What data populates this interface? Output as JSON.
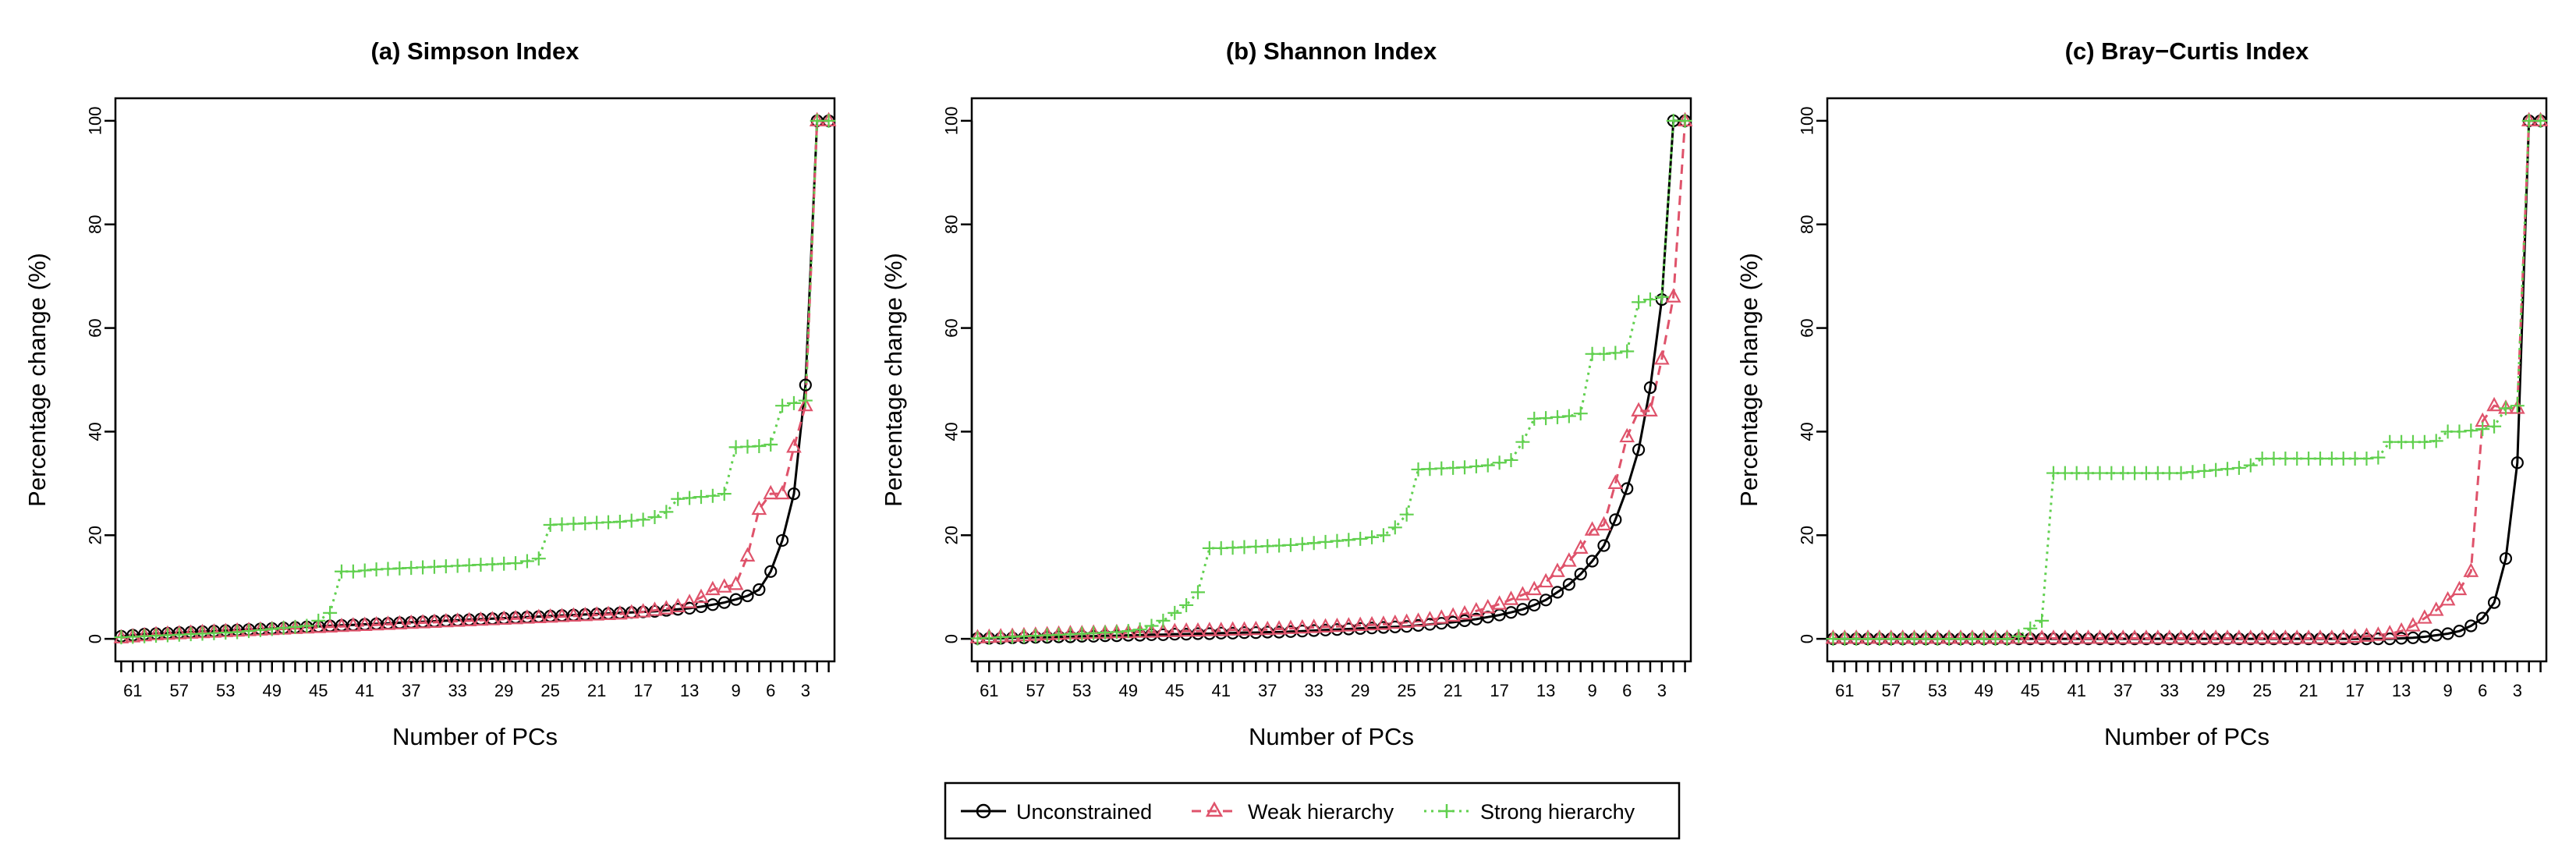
{
  "colors": {
    "unconstrained": "#000000",
    "weak": "#DF536B",
    "strong": "#61D04F"
  },
  "legend": {
    "items": [
      {
        "key": "unconstrained",
        "label": "Unconstrained"
      },
      {
        "key": "weak",
        "label": "Weak hierarchy"
      },
      {
        "key": "strong",
        "label": "Strong hierarchy"
      }
    ]
  },
  "chart_data": [
    {
      "type": "line",
      "title": "(a) Simpson Index",
      "xlabel": "Number of PCs",
      "ylabel": "Percentage change (%)",
      "x_reversed": true,
      "x": [
        62,
        61,
        60,
        59,
        58,
        57,
        56,
        55,
        54,
        53,
        52,
        51,
        50,
        49,
        48,
        47,
        46,
        45,
        44,
        43,
        42,
        41,
        40,
        39,
        38,
        37,
        36,
        35,
        34,
        33,
        32,
        31,
        30,
        29,
        28,
        27,
        26,
        25,
        24,
        23,
        22,
        21,
        20,
        19,
        18,
        17,
        16,
        15,
        14,
        13,
        12,
        11,
        10,
        9,
        8,
        7,
        6,
        5,
        4,
        3,
        2,
        1
      ],
      "xticks": [
        61,
        57,
        53,
        49,
        45,
        41,
        37,
        33,
        29,
        25,
        21,
        17,
        13,
        9,
        6,
        3
      ],
      "xlim": [
        62.5,
        0.5
      ],
      "ylim": [
        0,
        100
      ],
      "yticks": [
        0,
        20,
        40,
        60,
        80,
        100
      ],
      "series": [
        {
          "name": "Unconstrained",
          "key": "unconstrained",
          "values": [
            0.5,
            0.7,
            0.9,
            1.0,
            1.1,
            1.2,
            1.3,
            1.4,
            1.5,
            1.6,
            1.7,
            1.8,
            1.9,
            2.0,
            2.1,
            2.2,
            2.3,
            2.4,
            2.5,
            2.6,
            2.7,
            2.8,
            2.9,
            3.0,
            3.1,
            3.2,
            3.3,
            3.4,
            3.5,
            3.6,
            3.7,
            3.8,
            3.9,
            4.0,
            4.1,
            4.2,
            4.3,
            4.4,
            4.5,
            4.6,
            4.7,
            4.8,
            4.9,
            5.0,
            5.1,
            5.2,
            5.3,
            5.5,
            5.7,
            5.9,
            6.2,
            6.6,
            7.0,
            7.6,
            8.3,
            9.5,
            13.0,
            19.0,
            28.0,
            49.0,
            100.0,
            100.0
          ]
        },
        {
          "name": "Weak hierarchy",
          "key": "weak",
          "values": [
            0.2,
            0.4,
            0.6,
            0.8,
            0.9,
            1.0,
            1.1,
            1.2,
            1.3,
            1.4,
            1.5,
            1.6,
            1.7,
            1.8,
            1.9,
            2.0,
            2.1,
            2.2,
            2.3,
            2.4,
            2.5,
            2.6,
            2.7,
            2.8,
            2.9,
            3.0,
            3.1,
            3.2,
            3.3,
            3.4,
            3.5,
            3.6,
            3.7,
            3.8,
            3.9,
            4.0,
            4.1,
            4.2,
            4.3,
            4.4,
            4.5,
            4.6,
            4.7,
            4.8,
            5.0,
            5.2,
            5.5,
            5.8,
            6.2,
            7.0,
            8.0,
            9.5,
            10.0,
            10.5,
            16.0,
            25.0,
            28.0,
            28.0,
            37.0,
            45.0,
            100.0,
            100.0
          ]
        },
        {
          "name": "Strong hierarchy",
          "key": "strong",
          "values": [
            0.3,
            0.4,
            0.5,
            0.6,
            0.7,
            0.8,
            0.9,
            1.0,
            1.1,
            1.2,
            1.3,
            1.5,
            1.7,
            1.9,
            2.1,
            2.3,
            2.5,
            3.5,
            5.0,
            13.0,
            13.0,
            13.2,
            13.4,
            13.5,
            13.6,
            13.7,
            13.8,
            13.9,
            14.0,
            14.1,
            14.2,
            14.3,
            14.4,
            14.5,
            14.6,
            15.0,
            15.5,
            22.0,
            22.1,
            22.2,
            22.3,
            22.4,
            22.5,
            22.6,
            22.8,
            23.0,
            23.5,
            24.5,
            27.0,
            27.2,
            27.4,
            27.6,
            28.0,
            37.0,
            37.1,
            37.2,
            37.5,
            45.0,
            45.5,
            46.0,
            100.0,
            100.0
          ]
        }
      ]
    },
    {
      "type": "line",
      "title": "(b) Shannon Index",
      "xlabel": "Number of PCs",
      "ylabel": "Percentage change (%)",
      "x_reversed": true,
      "x": [
        62,
        61,
        60,
        59,
        58,
        57,
        56,
        55,
        54,
        53,
        52,
        51,
        50,
        49,
        48,
        47,
        46,
        45,
        44,
        43,
        42,
        41,
        40,
        39,
        38,
        37,
        36,
        35,
        34,
        33,
        32,
        31,
        30,
        29,
        28,
        27,
        26,
        25,
        24,
        23,
        22,
        21,
        20,
        19,
        18,
        17,
        16,
        15,
        14,
        13,
        12,
        11,
        10,
        9,
        8,
        7,
        6,
        5,
        4,
        3,
        2,
        1
      ],
      "xticks": [
        61,
        57,
        53,
        49,
        45,
        41,
        37,
        33,
        29,
        25,
        21,
        17,
        13,
        9,
        6,
        3
      ],
      "xlim": [
        62.5,
        0.5
      ],
      "ylim": [
        0,
        100
      ],
      "yticks": [
        0,
        20,
        40,
        60,
        80,
        100
      ],
      "series": [
        {
          "name": "Unconstrained",
          "key": "unconstrained",
          "values": [
            0.1,
            0.1,
            0.1,
            0.2,
            0.2,
            0.3,
            0.3,
            0.4,
            0.4,
            0.5,
            0.5,
            0.6,
            0.6,
            0.7,
            0.7,
            0.8,
            0.8,
            0.9,
            0.9,
            1.0,
            1.0,
            1.1,
            1.1,
            1.2,
            1.2,
            1.3,
            1.3,
            1.4,
            1.5,
            1.6,
            1.7,
            1.8,
            1.9,
            2.0,
            2.1,
            2.2,
            2.3,
            2.4,
            2.6,
            2.8,
            3.0,
            3.2,
            3.5,
            3.8,
            4.2,
            4.6,
            5.1,
            5.7,
            6.5,
            7.5,
            9.0,
            10.5,
            12.5,
            15.0,
            18.0,
            23.0,
            29.0,
            36.5,
            48.5,
            65.5,
            100.0,
            100.0
          ]
        },
        {
          "name": "Weak hierarchy",
          "key": "weak",
          "values": [
            0.2,
            0.3,
            0.4,
            0.5,
            0.6,
            0.7,
            0.8,
            0.9,
            1.0,
            1.0,
            1.1,
            1.1,
            1.2,
            1.2,
            1.3,
            1.3,
            1.4,
            1.4,
            1.5,
            1.5,
            1.6,
            1.6,
            1.7,
            1.7,
            1.8,
            1.8,
            1.9,
            2.0,
            2.1,
            2.2,
            2.3,
            2.4,
            2.5,
            2.6,
            2.7,
            2.8,
            3.0,
            3.2,
            3.4,
            3.7,
            4.0,
            4.4,
            4.8,
            5.4,
            6.0,
            6.7,
            7.6,
            8.5,
            9.5,
            11.0,
            13.0,
            15.0,
            17.5,
            21.0,
            22.0,
            30.0,
            39.0,
            44.0,
            44.0,
            54.0,
            66.0,
            100.0
          ]
        },
        {
          "name": "Strong hierarchy",
          "key": "strong",
          "values": [
            0.1,
            0.2,
            0.3,
            0.4,
            0.5,
            0.6,
            0.7,
            0.8,
            0.9,
            1.0,
            1.1,
            1.2,
            1.3,
            1.5,
            1.8,
            2.5,
            3.5,
            5.0,
            6.5,
            9.0,
            17.5,
            17.5,
            17.6,
            17.7,
            17.8,
            17.9,
            18.0,
            18.1,
            18.3,
            18.5,
            18.7,
            18.9,
            19.1,
            19.3,
            19.6,
            20.0,
            21.5,
            24.0,
            32.7,
            32.8,
            32.9,
            33.0,
            33.1,
            33.3,
            33.5,
            34.0,
            34.5,
            38.0,
            42.5,
            42.6,
            42.8,
            43.0,
            43.5,
            55.0,
            55.0,
            55.2,
            55.5,
            65.0,
            65.5,
            66.0,
            100.0,
            100.0
          ]
        }
      ]
    },
    {
      "type": "line",
      "title": "(c) Bray−Curtis Index",
      "xlabel": "Number of PCs",
      "ylabel": "Percentage change (%)",
      "x_reversed": true,
      "x": [
        62,
        61,
        60,
        59,
        58,
        57,
        56,
        55,
        54,
        53,
        52,
        51,
        50,
        49,
        48,
        47,
        46,
        45,
        44,
        43,
        42,
        41,
        40,
        39,
        38,
        37,
        36,
        35,
        34,
        33,
        32,
        31,
        30,
        29,
        28,
        27,
        26,
        25,
        24,
        23,
        22,
        21,
        20,
        19,
        18,
        17,
        16,
        15,
        14,
        13,
        12,
        11,
        10,
        9,
        8,
        7,
        6,
        5,
        4,
        3,
        2,
        1
      ],
      "xticks": [
        61,
        57,
        53,
        49,
        45,
        41,
        37,
        33,
        29,
        25,
        21,
        17,
        13,
        9,
        6,
        3
      ],
      "xlim": [
        62.5,
        0.5
      ],
      "ylim": [
        0,
        100
      ],
      "yticks": [
        0,
        20,
        40,
        60,
        80,
        100
      ],
      "series": [
        {
          "name": "Unconstrained",
          "key": "unconstrained",
          "values": [
            0.0,
            0.0,
            0.0,
            0.0,
            0.0,
            0.0,
            0.0,
            0.0,
            0.0,
            0.0,
            0.0,
            0.0,
            0.0,
            0.0,
            0.0,
            0.0,
            0.0,
            0.0,
            0.0,
            0.0,
            0.0,
            0.0,
            0.0,
            0.0,
            0.0,
            0.0,
            0.0,
            0.0,
            0.0,
            0.0,
            0.0,
            0.0,
            0.0,
            0.0,
            0.0,
            0.0,
            0.0,
            0.0,
            0.0,
            0.0,
            0.0,
            0.0,
            0.0,
            0.0,
            0.0,
            0.0,
            0.0,
            0.0,
            0.0,
            0.1,
            0.2,
            0.4,
            0.7,
            1.0,
            1.5,
            2.5,
            4.0,
            7.0,
            15.5,
            34.0,
            100.0,
            100.0
          ]
        },
        {
          "name": "Weak hierarchy",
          "key": "weak",
          "values": [
            0.1,
            0.1,
            0.1,
            0.1,
            0.1,
            0.1,
            0.1,
            0.1,
            0.1,
            0.1,
            0.1,
            0.1,
            0.1,
            0.1,
            0.1,
            0.1,
            0.1,
            0.1,
            0.1,
            0.1,
            0.1,
            0.1,
            0.1,
            0.1,
            0.1,
            0.1,
            0.1,
            0.1,
            0.1,
            0.1,
            0.1,
            0.1,
            0.1,
            0.1,
            0.1,
            0.1,
            0.1,
            0.1,
            0.1,
            0.1,
            0.1,
            0.1,
            0.1,
            0.1,
            0.2,
            0.3,
            0.5,
            0.7,
            1.0,
            1.5,
            2.5,
            4.0,
            5.5,
            7.5,
            9.5,
            13.0,
            42.0,
            45.0,
            44.5,
            44.5,
            100.0,
            100.0
          ]
        },
        {
          "name": "Strong hierarchy",
          "key": "strong",
          "values": [
            0.0,
            0.0,
            0.0,
            0.0,
            0.0,
            0.0,
            0.0,
            0.0,
            0.0,
            0.0,
            0.0,
            0.0,
            0.0,
            0.0,
            0.0,
            0.0,
            0.5,
            2.0,
            3.5,
            32.0,
            32.0,
            32.0,
            32.0,
            32.0,
            32.0,
            32.0,
            32.0,
            32.0,
            32.0,
            32.0,
            32.0,
            32.2,
            32.4,
            32.6,
            32.8,
            33.0,
            33.5,
            34.8,
            34.8,
            34.8,
            34.8,
            34.8,
            34.8,
            34.8,
            34.8,
            34.8,
            34.8,
            35.0,
            38.0,
            38.0,
            38.0,
            38.0,
            38.2,
            40.0,
            40.0,
            40.2,
            40.5,
            41.0,
            44.5,
            45.0,
            100.0,
            100.0
          ]
        }
      ]
    }
  ]
}
